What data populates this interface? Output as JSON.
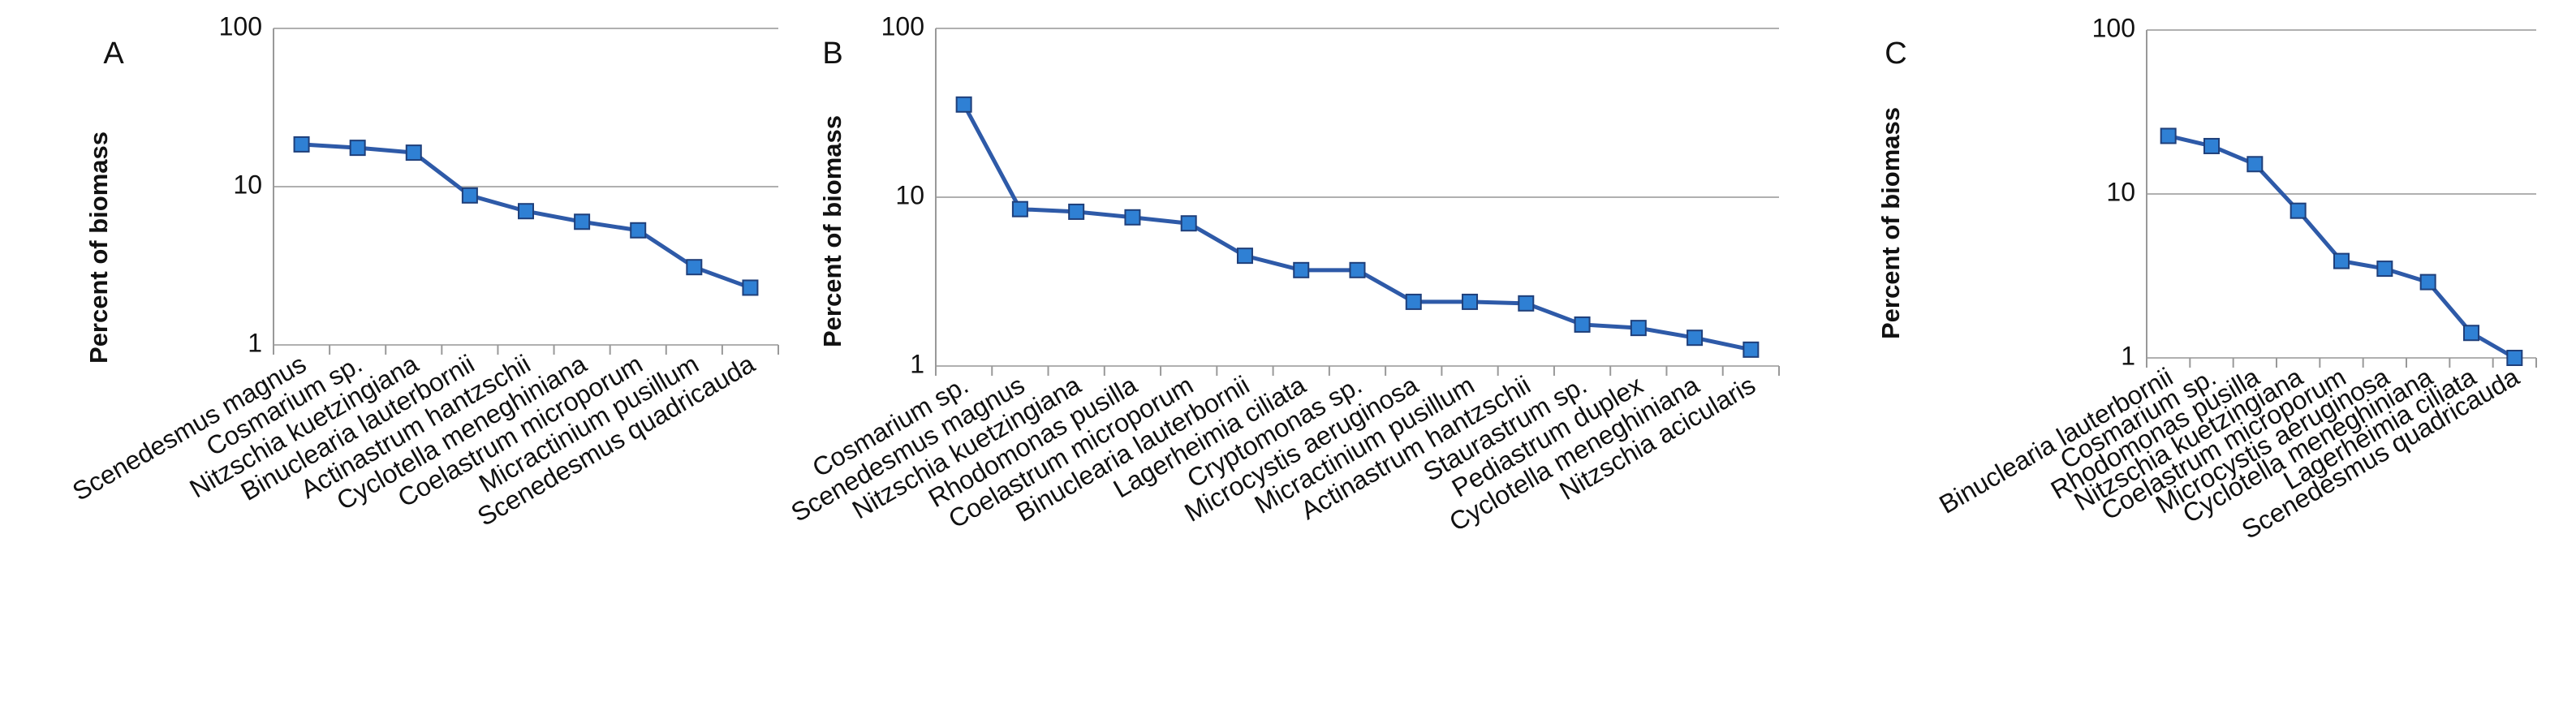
{
  "chart_data": [
    {
      "type": "line",
      "panel_label": "A",
      "y_label": "Percent of biomass",
      "log_scale": true,
      "color": "#2e5aa8",
      "marker_color": "#2f80d4",
      "categories": [
        "Scenedesmus magnus",
        "Cosmarium sp.",
        "Nitzschia kuetzingiana",
        "Binuclearia lauterbornii",
        "Actinastrum hantzschii",
        "Cyclotella meneghiniana",
        "Coelastrum microporum",
        "Micractinium pusillum",
        "Scenedesmus quadricauda"
      ],
      "values": [
        18.5,
        17.6,
        16.4,
        8.8,
        7.0,
        6.0,
        5.3,
        3.1,
        2.3
      ],
      "ylim": [
        1,
        100
      ],
      "yticks": [
        1,
        10,
        100
      ],
      "grid": true
    },
    {
      "type": "line",
      "panel_label": "B",
      "y_label": "Percent of biomass",
      "log_scale": true,
      "color": "#2e5aa8",
      "marker_color": "#2f80d4",
      "categories": [
        "Cosmarium sp.",
        "Scenedesmus magnus",
        "Nitzschia kuetzingiana",
        "Rhodomonas pusilla",
        "Coelastrum microporum",
        "Binuclearia lauterbornii",
        "Lagerheimia ciliata",
        "Cryptomonas sp.",
        "Microcystis aeruginosa",
        "Micractinium pusillum",
        "Actinastrum hantzschii",
        "Staurastrum sp.",
        "Pediastrum duplex",
        "Cyclotella meneghiniana",
        "Nitzschia acicularis"
      ],
      "values": [
        35.4,
        8.5,
        8.2,
        7.6,
        7.0,
        4.5,
        3.7,
        3.7,
        2.4,
        2.4,
        2.35,
        1.76,
        1.68,
        1.47,
        1.25
      ],
      "ylim": [
        1,
        100
      ],
      "yticks": [
        1,
        10,
        100
      ],
      "grid": true
    },
    {
      "type": "line",
      "panel_label": "C",
      "y_label": "Percent of biomass",
      "log_scale": true,
      "color": "#2e5aa8",
      "marker_color": "#2f80d4",
      "categories": [
        "Binuclearia lauterbornii",
        "Cosmarium sp.",
        "Rhodomonas pusilla",
        "Nitzschia kuetzingiana",
        "Coelastrum microporum",
        "Microcystis aeruginosa",
        "Cyclotella meneghiniana",
        "Lagerheimia ciliata",
        "Scenedesmus quadricauda"
      ],
      "values": [
        22.6,
        19.6,
        15.2,
        7.9,
        3.9,
        3.5,
        2.9,
        1.42,
        1.0
      ],
      "ylim": [
        1,
        100
      ],
      "yticks": [
        1,
        10,
        100
      ],
      "grid": true
    }
  ]
}
